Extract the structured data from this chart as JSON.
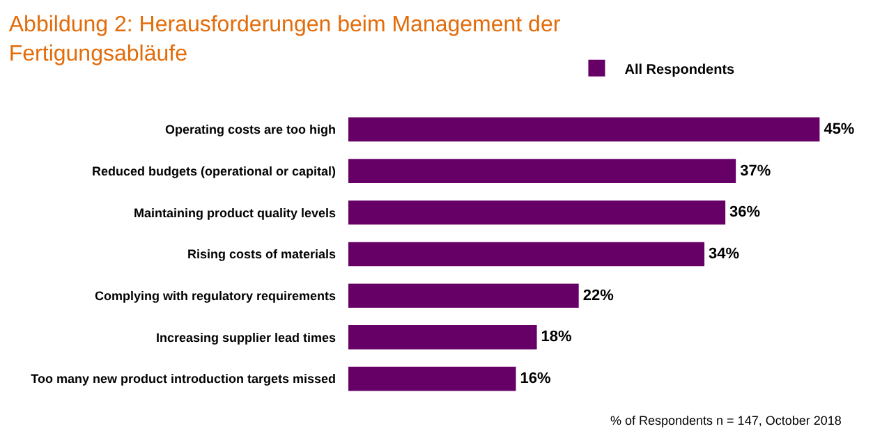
{
  "chart_data": {
    "type": "bar",
    "orientation": "horizontal",
    "title": "Abbildung 2: Herausforderungen beim Management der Fertigungsabläufe",
    "categories": [
      "Operating costs are too high",
      "Reduced budgets (operational or capital)",
      "Maintaining product quality levels",
      "Rising costs of materials",
      "Complying with regulatory requirements",
      "Increasing supplier lead times",
      "Too many new product introduction targets missed"
    ],
    "series": [
      {
        "name": "All Respondents",
        "color": "#660066",
        "values": [
          45,
          37,
          36,
          34,
          22,
          18,
          16
        ],
        "value_labels": [
          "45%",
          "37%",
          "36%",
          "34%",
          "22%",
          "18%",
          "16%"
        ]
      }
    ],
    "legend": "top",
    "annotations": [
      "% of Respondents n = 147, October 2018"
    ]
  }
}
